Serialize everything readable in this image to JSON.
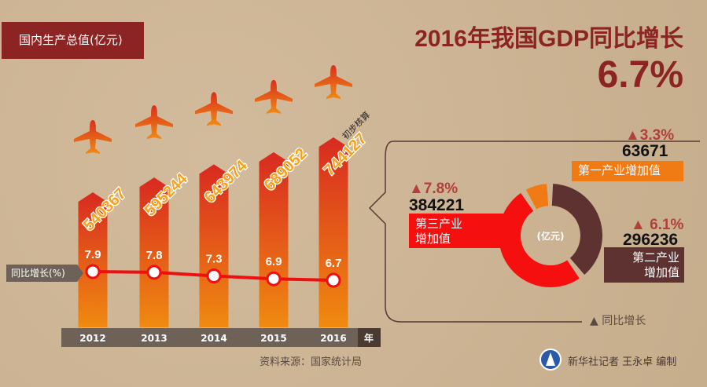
{
  "header": {
    "unit_label": "国内生产总值(亿元)",
    "title": "2016年我国GDP同比增长",
    "headline_value": "6.7%"
  },
  "chart_data": [
    {
      "type": "bar",
      "categories": [
        "2012",
        "2013",
        "2014",
        "2015",
        "2016"
      ],
      "values": [
        540367,
        595244,
        643974,
        689052,
        744127
      ],
      "ylabel": "国内生产总值(亿元)",
      "xlabel": "年",
      "annotation": "初步核算",
      "value_labels": [
        "540367",
        "595244",
        "643974",
        "689052",
        "744127"
      ]
    },
    {
      "type": "line",
      "categories": [
        "2012",
        "2013",
        "2014",
        "2015",
        "2016"
      ],
      "values": [
        7.9,
        7.8,
        7.3,
        6.9,
        6.7
      ],
      "value_labels": [
        "7.9",
        "7.8",
        "7.3",
        "6.9",
        "6.7"
      ],
      "label": "同比增长(%)"
    },
    {
      "type": "pie",
      "unit": "(亿元)",
      "slices": [
        {
          "name": "第三产业增加值",
          "value": 384221,
          "growth": "▲7.8%",
          "value_label": "384221",
          "color": "#f50f0f"
        },
        {
          "name": "第二产业增加值",
          "value": 296236,
          "growth": "▲ 6.1%",
          "value_label": "296236",
          "color": "#5e3230"
        },
        {
          "name": "第一产业增加值",
          "value": 63671,
          "growth": "▲3.3%",
          "value_label": "63671",
          "color": "#f07a14"
        }
      ],
      "legend": "▲ 同比增长"
    }
  ],
  "colors": {
    "title": "#8c2424",
    "bar_top": "#d82a20",
    "bar_bottom": "#f08a10",
    "line": "#ee1010",
    "axis": "#6e6258"
  },
  "footer": {
    "source": "资料来源：国家统计局",
    "credit": "新华社记者  王永卓  编制"
  }
}
